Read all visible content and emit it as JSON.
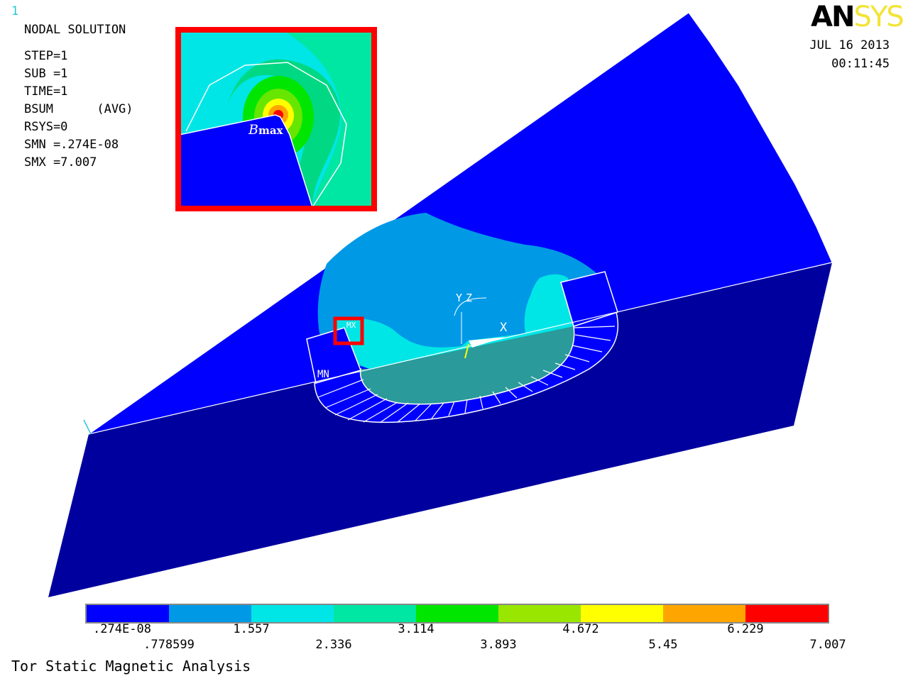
{
  "window_number": "1",
  "logo": {
    "part1": "AN",
    "part2": "SYS"
  },
  "date": "JUL 16 2013",
  "time": "00:11:45",
  "info": [
    "NODAL SOLUTION",
    "STEP=1",
    "SUB =1",
    "TIME=1",
    "BSUM      (AVG)",
    "RSYS=0",
    "SMN =.274E-08",
    "SMX =7.007"
  ],
  "inset": {
    "label_main": "B",
    "label_sub": "max"
  },
  "model_labels": {
    "mn": "MN",
    "mx": "MX",
    "node_1": "1",
    "axis_x": "X",
    "axis_y": "Y",
    "axis_z": "Z"
  },
  "legend": {
    "labels": [
      ".274E-08",
      ".778599",
      "1.557",
      "2.336",
      "3.114",
      "3.893",
      "4.672",
      "5.45",
      "6.229",
      "7.007"
    ],
    "colors": [
      "#0000ff",
      "#0099e6",
      "#00e6e6",
      "#00e6a3",
      "#00e600",
      "#99e600",
      "#ffff00",
      "#ffa500",
      "#ff0000"
    ]
  },
  "title": "Tor Static Magnetic Analysis",
  "colors": {
    "highlight": "#ff0000",
    "cyan_text": "#22c8d8"
  }
}
